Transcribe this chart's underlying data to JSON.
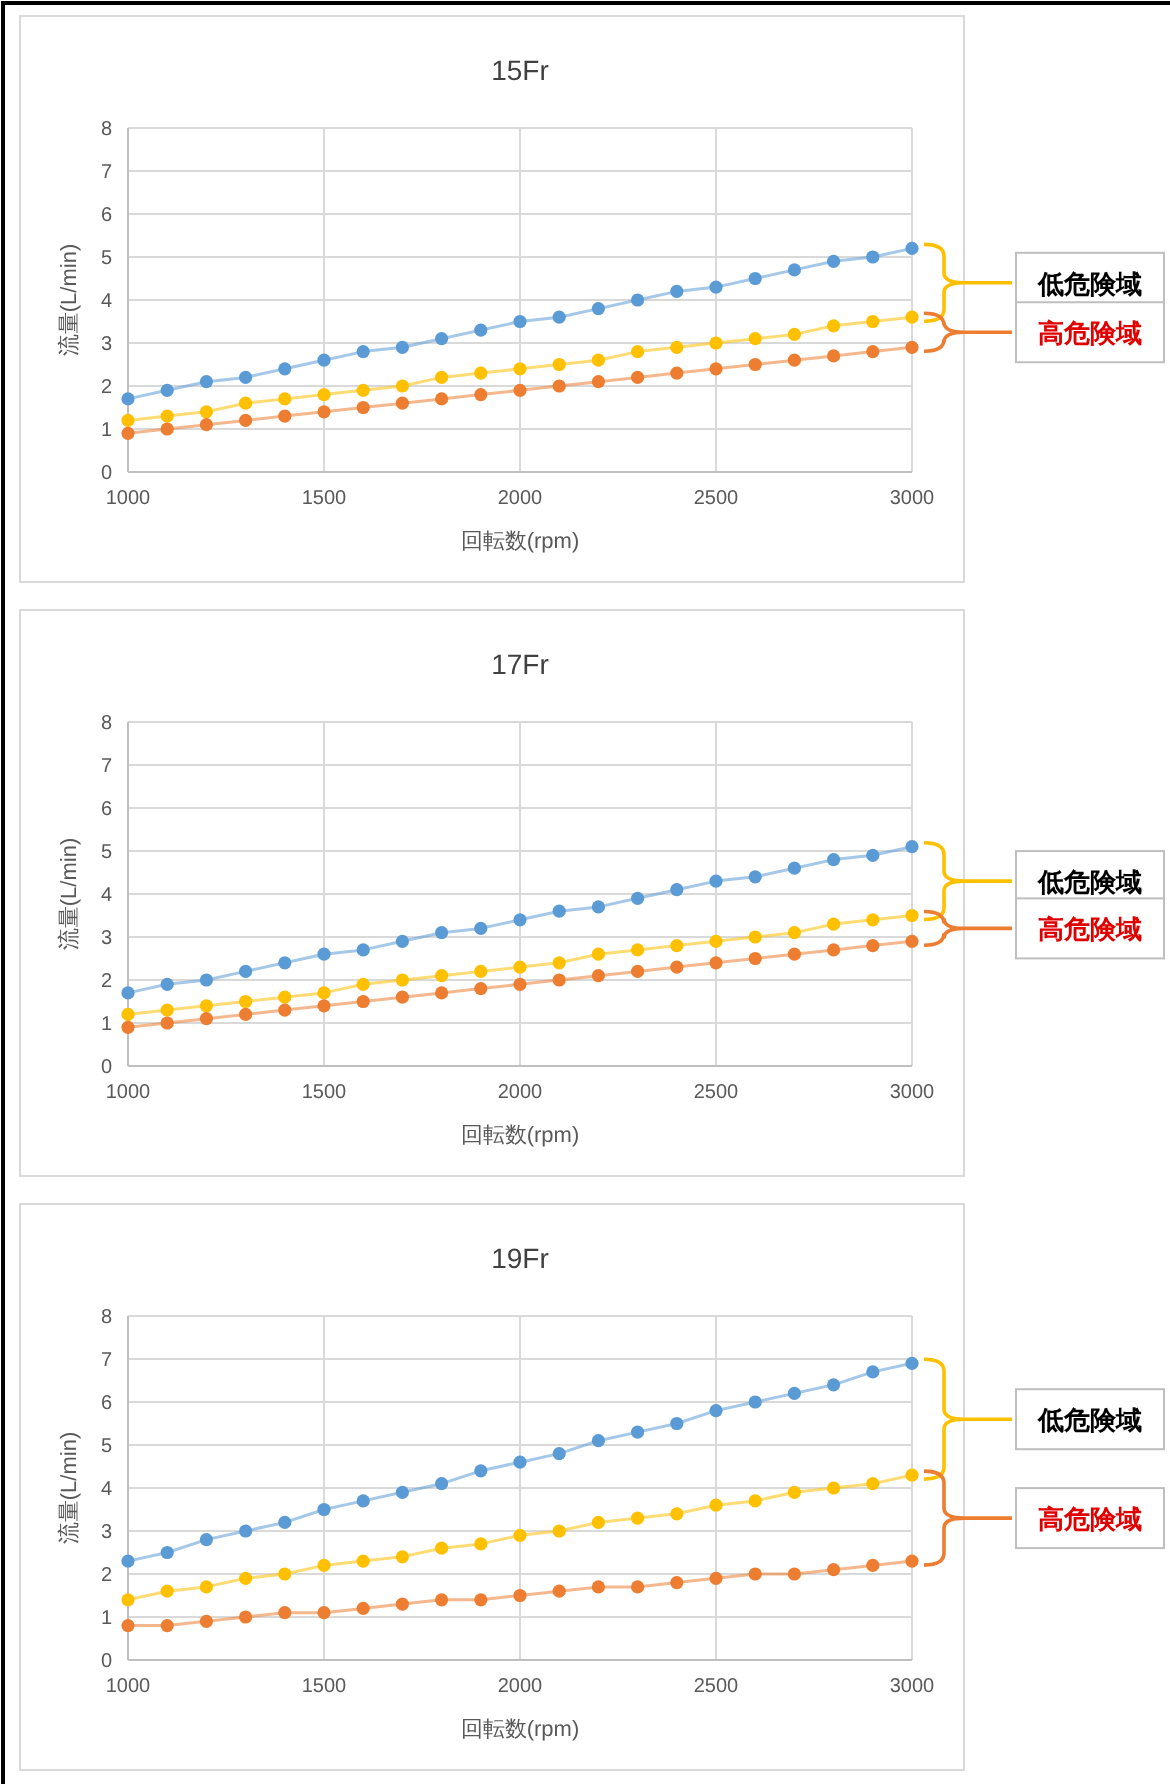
{
  "chart_data": [
    {
      "type": "line",
      "title": "15Fr",
      "xlabel": "回転数(rpm)",
      "ylabel": "流量(L/min)",
      "x": [
        1000,
        1100,
        1200,
        1300,
        1400,
        1500,
        1600,
        1700,
        1800,
        1900,
        2000,
        2100,
        2200,
        2300,
        2400,
        2500,
        2600,
        2700,
        2800,
        2900,
        3000
      ],
      "xlim": [
        1000,
        3000
      ],
      "xticks": [
        1000,
        1500,
        2000,
        2500,
        3000
      ],
      "ylim": [
        0,
        8
      ],
      "yticks": [
        0,
        1,
        2,
        3,
        4,
        5,
        6,
        7,
        8
      ],
      "grid": true,
      "marker": "circle",
      "annotations": [
        "低危険域",
        "高危険域"
      ],
      "series": [
        {
          "color": "#5b9bd5",
          "values": [
            1.7,
            1.9,
            2.1,
            2.2,
            2.4,
            2.6,
            2.8,
            2.9,
            3.1,
            3.3,
            3.5,
            3.6,
            3.8,
            4.0,
            4.2,
            4.3,
            4.5,
            4.7,
            4.9,
            5.0,
            5.2
          ]
        },
        {
          "color": "#ffc000",
          "values": [
            1.2,
            1.3,
            1.4,
            1.6,
            1.7,
            1.8,
            1.9,
            2.0,
            2.2,
            2.3,
            2.4,
            2.5,
            2.6,
            2.8,
            2.9,
            3.0,
            3.1,
            3.2,
            3.4,
            3.5,
            3.6
          ]
        },
        {
          "color": "#ed7d31",
          "values": [
            0.9,
            1.0,
            1.1,
            1.2,
            1.3,
            1.4,
            1.5,
            1.6,
            1.7,
            1.8,
            1.9,
            2.0,
            2.1,
            2.2,
            2.3,
            2.4,
            2.5,
            2.6,
            2.7,
            2.8,
            2.9
          ]
        }
      ]
    },
    {
      "type": "line",
      "title": "17Fr",
      "xlabel": "回転数(rpm)",
      "ylabel": "流量(L/min)",
      "x": [
        1000,
        1100,
        1200,
        1300,
        1400,
        1500,
        1600,
        1700,
        1800,
        1900,
        2000,
        2100,
        2200,
        2300,
        2400,
        2500,
        2600,
        2700,
        2800,
        2900,
        3000
      ],
      "xlim": [
        1000,
        3000
      ],
      "xticks": [
        1000,
        1500,
        2000,
        2500,
        3000
      ],
      "ylim": [
        0,
        8
      ],
      "yticks": [
        0,
        1,
        2,
        3,
        4,
        5,
        6,
        7,
        8
      ],
      "grid": true,
      "marker": "circle",
      "annotations": [
        "低危険域",
        "高危険域"
      ],
      "series": [
        {
          "color": "#5b9bd5",
          "values": [
            1.7,
            1.9,
            2.0,
            2.2,
            2.4,
            2.6,
            2.7,
            2.9,
            3.1,
            3.2,
            3.4,
            3.6,
            3.7,
            3.9,
            4.1,
            4.3,
            4.4,
            4.6,
            4.8,
            4.9,
            5.1
          ]
        },
        {
          "color": "#ffc000",
          "values": [
            1.2,
            1.3,
            1.4,
            1.5,
            1.6,
            1.7,
            1.9,
            2.0,
            2.1,
            2.2,
            2.3,
            2.4,
            2.6,
            2.7,
            2.8,
            2.9,
            3.0,
            3.1,
            3.3,
            3.4,
            3.5
          ]
        },
        {
          "color": "#ed7d31",
          "values": [
            0.9,
            1.0,
            1.1,
            1.2,
            1.3,
            1.4,
            1.5,
            1.6,
            1.7,
            1.8,
            1.9,
            2.0,
            2.1,
            2.2,
            2.3,
            2.4,
            2.5,
            2.6,
            2.7,
            2.8,
            2.9
          ]
        }
      ]
    },
    {
      "type": "line",
      "title": "19Fr",
      "xlabel": "回転数(rpm)",
      "ylabel": "流量(L/min)",
      "x": [
        1000,
        1100,
        1200,
        1300,
        1400,
        1500,
        1600,
        1700,
        1800,
        1900,
        2000,
        2100,
        2200,
        2300,
        2400,
        2500,
        2600,
        2700,
        2800,
        2900,
        3000
      ],
      "xlim": [
        1000,
        3000
      ],
      "xticks": [
        1000,
        1500,
        2000,
        2500,
        3000
      ],
      "ylim": [
        0,
        8
      ],
      "yticks": [
        0,
        1,
        2,
        3,
        4,
        5,
        6,
        7,
        8
      ],
      "grid": true,
      "marker": "circle",
      "annotations": [
        "低危険域",
        "高危険域"
      ],
      "series": [
        {
          "color": "#5b9bd5",
          "values": [
            2.3,
            2.5,
            2.8,
            3.0,
            3.2,
            3.5,
            3.7,
            3.9,
            4.1,
            4.4,
            4.6,
            4.8,
            5.1,
            5.3,
            5.5,
            5.8,
            6.0,
            6.2,
            6.4,
            6.7,
            6.9
          ]
        },
        {
          "color": "#ffc000",
          "values": [
            1.4,
            1.6,
            1.7,
            1.9,
            2.0,
            2.2,
            2.3,
            2.4,
            2.6,
            2.7,
            2.9,
            3.0,
            3.2,
            3.3,
            3.4,
            3.6,
            3.7,
            3.9,
            4.0,
            4.1,
            4.3
          ]
        },
        {
          "color": "#ed7d31",
          "values": [
            0.8,
            0.8,
            0.9,
            1.0,
            1.1,
            1.1,
            1.2,
            1.3,
            1.4,
            1.4,
            1.5,
            1.6,
            1.7,
            1.7,
            1.8,
            1.9,
            2.0,
            2.0,
            2.1,
            2.2,
            2.3
          ]
        }
      ]
    }
  ]
}
